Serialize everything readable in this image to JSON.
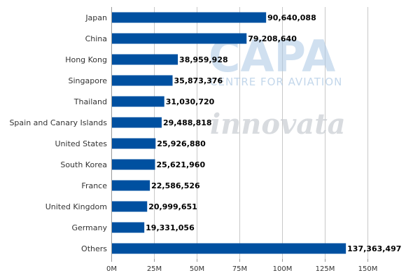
{
  "chart_data": {
    "type": "bar",
    "orientation": "horizontal",
    "title": "",
    "xlabel": "",
    "ylabel": "",
    "xlim": [
      0,
      150000000
    ],
    "ticks": [
      {
        "value": 0,
        "label": "0M"
      },
      {
        "value": 25000000,
        "label": "25M"
      },
      {
        "value": 50000000,
        "label": "50M"
      },
      {
        "value": 75000000,
        "label": "75M"
      },
      {
        "value": 100000000,
        "label": "100M"
      },
      {
        "value": 125000000,
        "label": "125M"
      },
      {
        "value": 150000000,
        "label": "150M"
      }
    ],
    "grid": true,
    "bar_color": "#0050a0",
    "categories": [
      "Japan",
      "China",
      "Hong Kong",
      "Singapore",
      "Thailand",
      "Spain and Canary Islands",
      "United States",
      "South Korea",
      "France",
      "United Kingdom",
      "Germany",
      "Others"
    ],
    "values": [
      90640088,
      79208640,
      38959928,
      35873376,
      31030720,
      29488818,
      25926880,
      25621960,
      22586526,
      20999651,
      19331056,
      137363497
    ],
    "value_labels": [
      "90,640,088",
      "79,208,640",
      "38,959,928",
      "35,873,376",
      "31,030,720",
      "29,488,818",
      "25,926,880",
      "25,621,960",
      "22,586,526",
      "20,999,651",
      "19,331,056",
      "137,363,497"
    ]
  },
  "watermarks": {
    "capa_logo": "CAPA",
    "capa_subtitle": "CENTRE FOR AVIATION",
    "innovata_logo": "innovata"
  }
}
